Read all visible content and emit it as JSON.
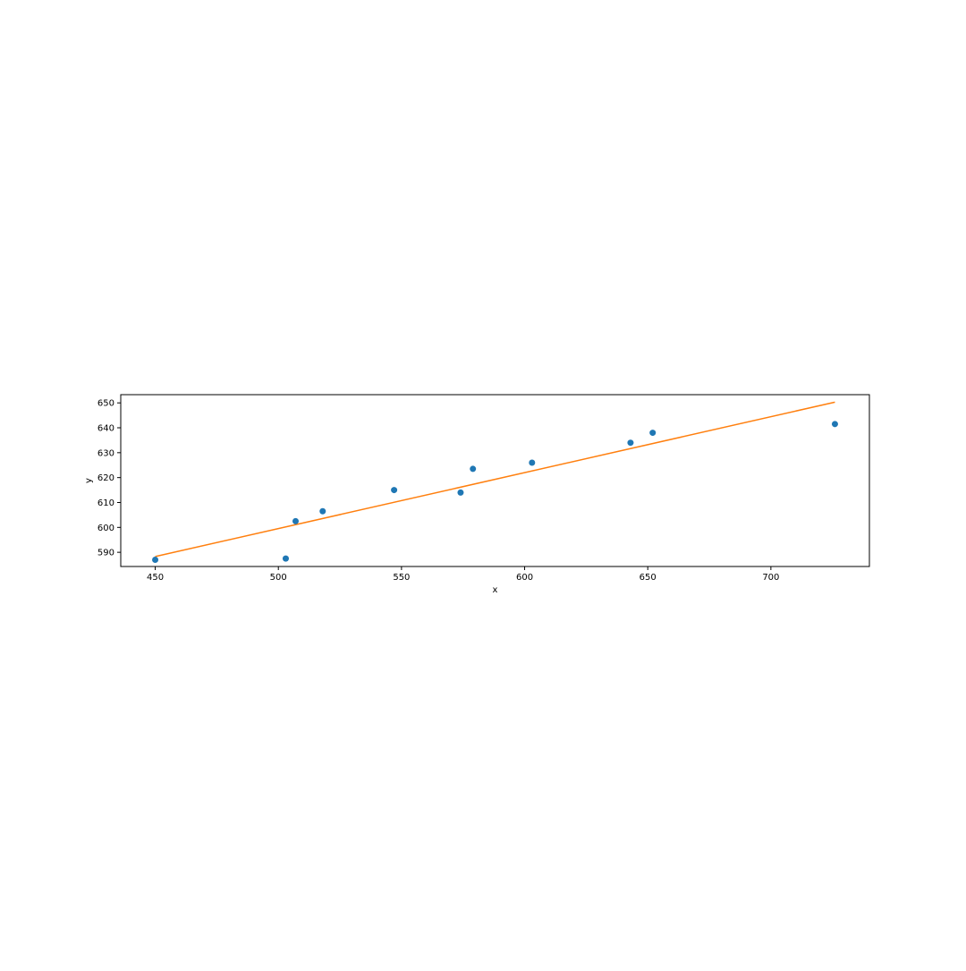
{
  "chart_data": {
    "type": "scatter",
    "xlabel": "x",
    "ylabel": "y",
    "xlim": [
      436,
      740
    ],
    "ylim": [
      584.3,
      653.3
    ],
    "xticks": [
      450,
      500,
      550,
      600,
      650,
      700
    ],
    "yticks": [
      590,
      600,
      610,
      620,
      630,
      640,
      650
    ],
    "grid": false,
    "series": [
      {
        "type": "scatter",
        "color": "#1f77b4",
        "x": [
          450,
          503,
          507,
          518,
          547,
          574,
          579,
          603,
          643,
          652,
          726
        ],
        "y": [
          587,
          587.5,
          602.5,
          606.5,
          615,
          614,
          623.5,
          626,
          634,
          638,
          641.5
        ]
      },
      {
        "type": "line",
        "color": "#ff7f0e",
        "x": [
          450,
          726
        ],
        "y": [
          588.3,
          650.3
        ]
      }
    ]
  }
}
